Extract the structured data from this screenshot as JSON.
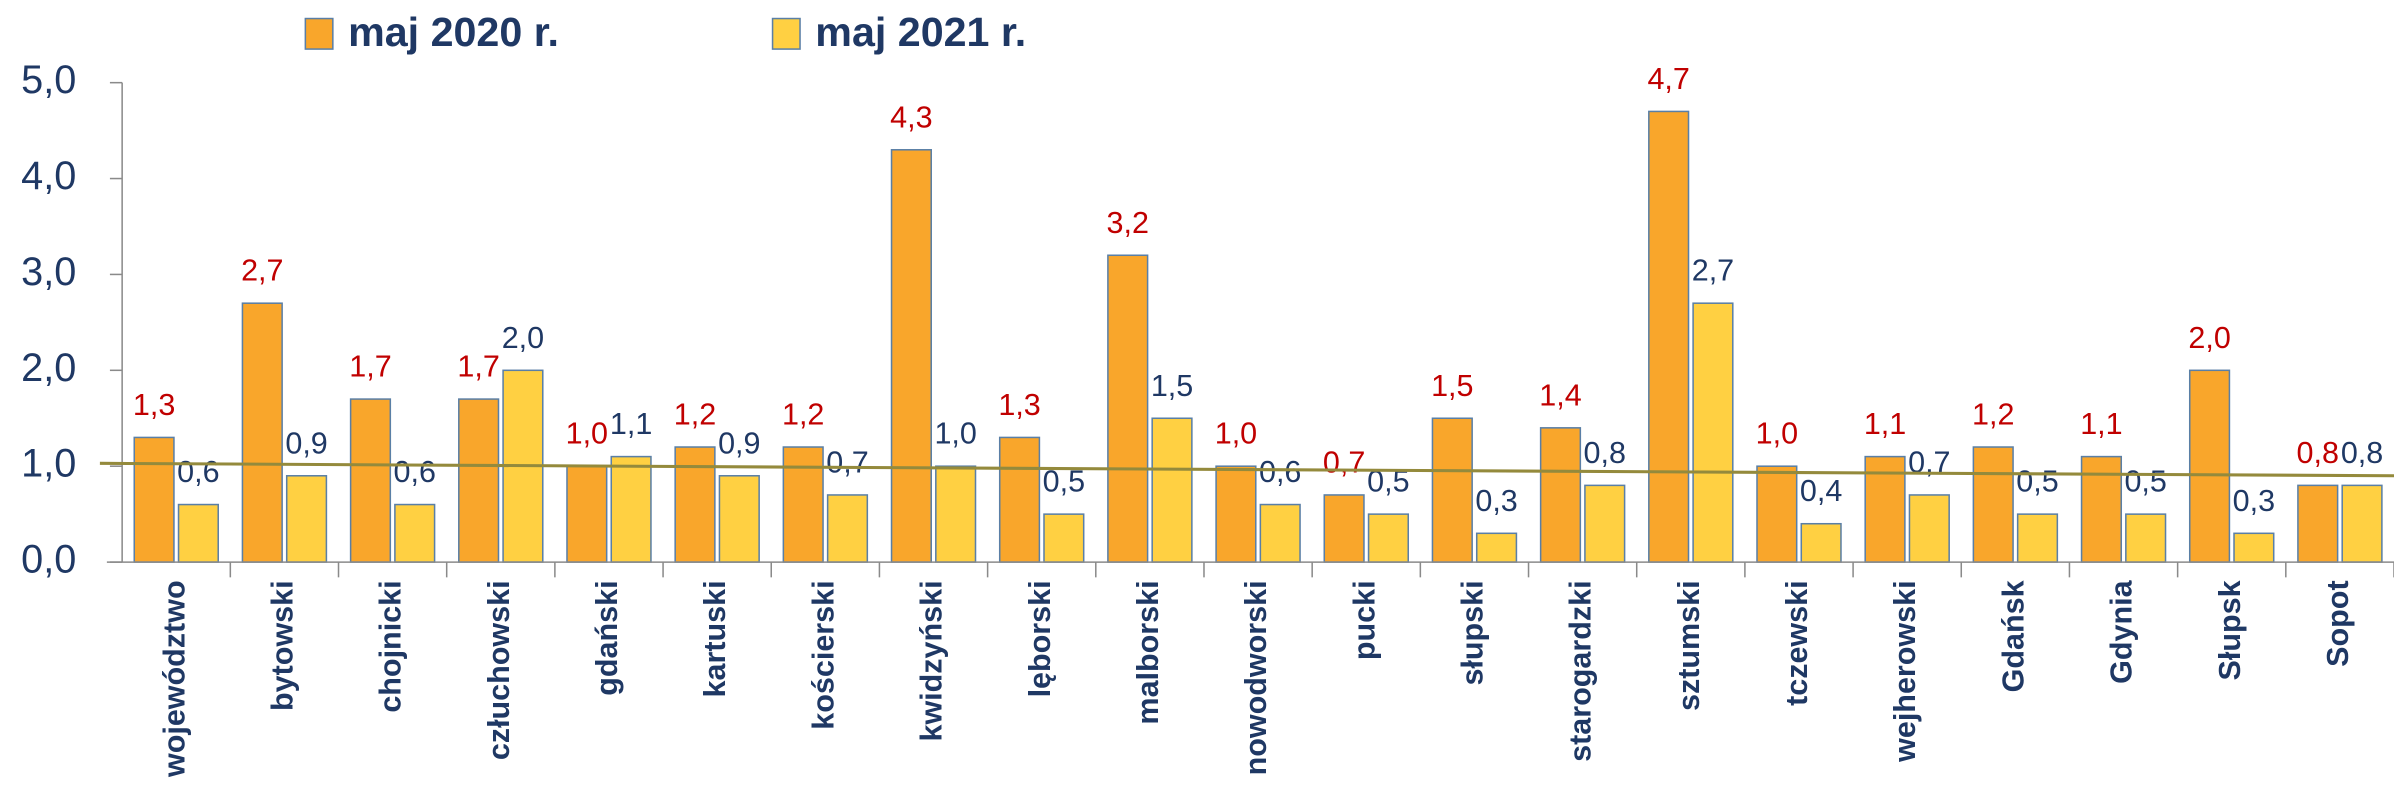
{
  "chart_data": {
    "type": "bar",
    "categories": [
      "województwo",
      "bytowski",
      "chojnicki",
      "człuchowski",
      "gdański",
      "kartuski",
      "kościerski",
      "kwidzyński",
      "lęborski",
      "malborski",
      "nowodworski",
      "pucki",
      "słupski",
      "starogardzki",
      "sztumski",
      "tczewski",
      "wejherowski",
      "Gdańsk",
      "Gdynia",
      "Słupsk",
      "Sopot"
    ],
    "series": [
      {
        "name": "maj 2020 r.",
        "color": "#f9a62b",
        "label_color": "#c00000",
        "values": [
          1.3,
          2.7,
          1.7,
          1.7,
          1.0,
          1.2,
          1.2,
          4.3,
          1.3,
          3.2,
          1.0,
          0.7,
          1.5,
          1.4,
          4.7,
          1.0,
          1.1,
          1.2,
          1.1,
          2.0,
          0.8
        ],
        "value_labels": [
          "1,3",
          "2,7",
          "1,7",
          "1,7",
          "1,0",
          "1,2",
          "1,2",
          "4,3",
          "1,3",
          "3,2",
          "1,0",
          "0,7",
          "1,5",
          "1,4",
          "4,7",
          "1,0",
          "1,1",
          "1,2",
          "1,1",
          "2,0",
          "0,8"
        ]
      },
      {
        "name": "maj 2021 r.",
        "color": "#ffd042",
        "label_color": "#1f3864",
        "values": [
          0.6,
          0.9,
          0.6,
          2.0,
          1.1,
          0.9,
          0.7,
          1.0,
          0.5,
          1.5,
          0.6,
          0.5,
          0.3,
          0.8,
          2.7,
          0.4,
          0.7,
          0.5,
          0.5,
          0.3,
          0.8
        ],
        "value_labels": [
          "0,6",
          "0,9",
          "0,6",
          "2,0",
          "1,1",
          "0,9",
          "0,7",
          "1,0",
          "0,5",
          "1,5",
          "0,6",
          "0,5",
          "0,3",
          "0,8",
          "2,7",
          "0,4",
          "0,7",
          "0,5",
          "0,5",
          "0,3",
          "0,8"
        ]
      }
    ],
    "trendline": {
      "values": [
        1.03,
        0.9
      ],
      "color": "#948a3c"
    },
    "ylim": [
      0,
      5
    ],
    "yticks": [
      {
        "value": 0,
        "label": "0,0"
      },
      {
        "value": 1,
        "label": "1,0"
      },
      {
        "value": 2,
        "label": "2,0"
      },
      {
        "value": 3,
        "label": "3,0"
      },
      {
        "value": 4,
        "label": "4,0"
      },
      {
        "value": 5,
        "label": "5,0"
      }
    ],
    "grid": false,
    "legend": "top"
  }
}
